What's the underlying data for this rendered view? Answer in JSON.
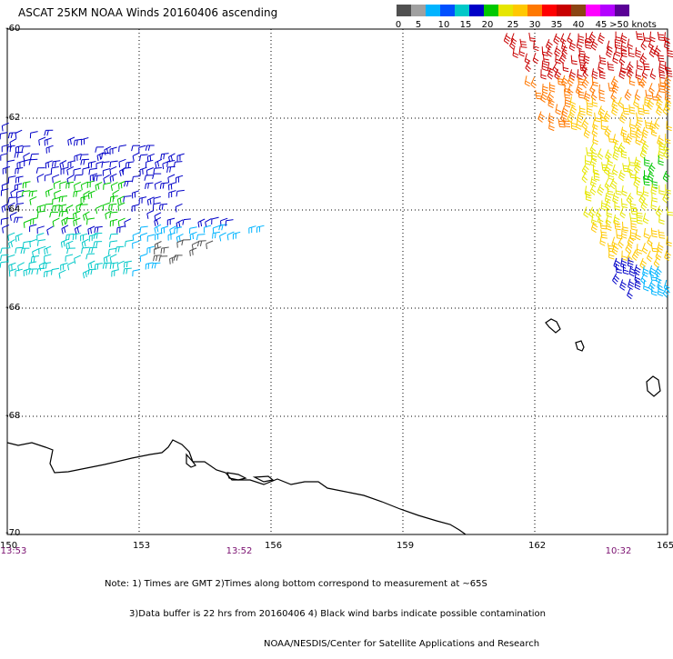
{
  "title": "ASCAT 25KM NOAA Winds 20160406 ascending",
  "colorbar": {
    "colors": [
      "#505050",
      "#a0a0a0",
      "#00b4ff",
      "#0050ff",
      "#00c8c8",
      "#0000c8",
      "#00c800",
      "#e6e600",
      "#ffc800",
      "#ff7800",
      "#ff0000",
      "#c80000",
      "#8b4513",
      "#ff00ff",
      "#b400ff",
      "#5a0096"
    ],
    "ticks": [
      "0",
      "5",
      "10",
      "15",
      "20",
      "25",
      "30",
      "35",
      "40",
      "45",
      ">50 knots"
    ]
  },
  "map": {
    "lon_range": [
      150,
      165
    ],
    "lat_range": [
      -70,
      -60
    ],
    "lat_labels": [
      "-60",
      "-62",
      "-64",
      "-66",
      "-68",
      "-70"
    ],
    "lon_labels": [
      "150",
      "153",
      "156",
      "159",
      "162",
      "165"
    ],
    "time_labels": [
      "13:53",
      "13:52",
      "10:32"
    ]
  },
  "notes": [
    "Note: 1) Times are GMT 2)Times along bottom correspond to measurement at ~65S",
    "3)Data buffer is 22 hrs from 20160406 4) Black wind barbs indicate possible contamination",
    "NOAA/NESDIS/Center for Satellite Applications and Research"
  ]
}
